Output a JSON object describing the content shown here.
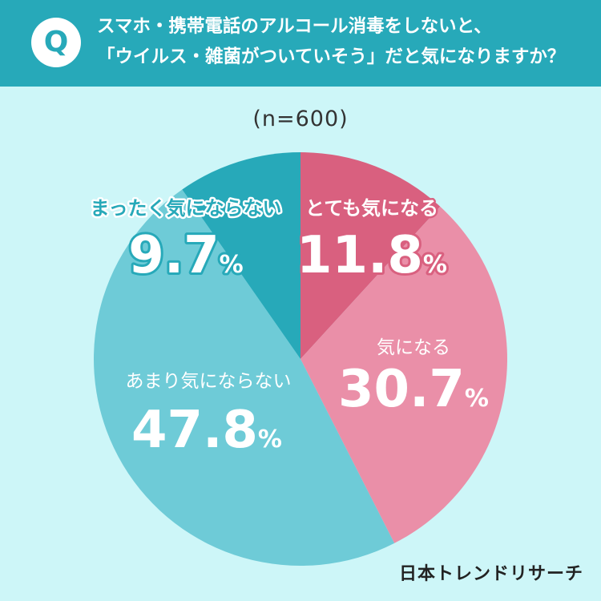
{
  "header": {
    "badge": "Q",
    "line1": "スマホ・携帯電話のアルコール消毒をしないと、",
    "line2": "「ウイルス・雑菌がついていそう」だと気になりますか？"
  },
  "sample_label": "(n=600)",
  "brand": "日本トレンドリサーチ",
  "colors": {
    "header_bg": "#27a9b9",
    "page_bg": "#cdf6f8"
  },
  "chart_data": {
    "type": "pie",
    "start": "12 o'clock, clockwise",
    "slices": [
      {
        "label": "とても気になる",
        "value": 11.8,
        "display": "11.8",
        "color": "#d9607f"
      },
      {
        "label": "気になる",
        "value": 30.7,
        "display": "30.7",
        "color": "#ea8fa8"
      },
      {
        "label": "あまり気にならない",
        "value": 47.8,
        "display": "47.8",
        "color": "#6ecbd7"
      },
      {
        "label": "まったく気にならない",
        "value": 9.7,
        "display": "9.7",
        "color": "#27a9b9"
      }
    ],
    "unit": "%"
  }
}
